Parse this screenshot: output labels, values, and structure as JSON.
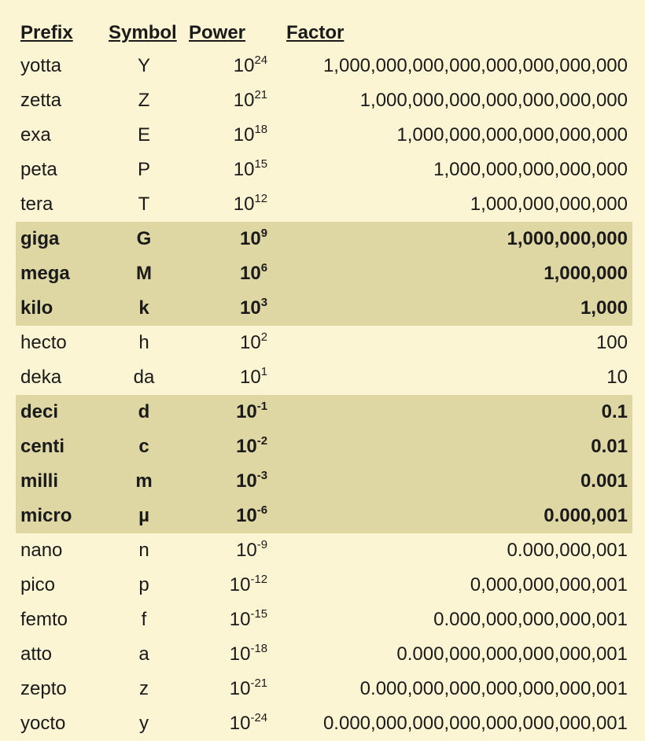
{
  "table": {
    "columns": [
      "Prefix",
      "Symbol",
      "Power",
      "Factor"
    ],
    "column_align": [
      "left",
      "center",
      "right",
      "right"
    ],
    "power_base": "10",
    "background_color": "#fcf5d4",
    "highlight_color": "#ded6a3",
    "text_color": "#1a1a1a",
    "font_size_pt": 18,
    "rows": [
      {
        "prefix": "yotta",
        "symbol": "Y",
        "exponent": "24",
        "factor": "1,000,000,000,000,000,000,000,000",
        "highlight": false
      },
      {
        "prefix": "zetta",
        "symbol": "Z",
        "exponent": "21",
        "factor": "1,000,000,000,000,000,000,000",
        "highlight": false
      },
      {
        "prefix": "exa",
        "symbol": "E",
        "exponent": "18",
        "factor": "1,000,000,000,000,000,000",
        "highlight": false
      },
      {
        "prefix": "peta",
        "symbol": "P",
        "exponent": "15",
        "factor": "1,000,000,000,000,000",
        "highlight": false
      },
      {
        "prefix": "tera",
        "symbol": "T",
        "exponent": "12",
        "factor": "1,000,000,000,000",
        "highlight": false
      },
      {
        "prefix": "giga",
        "symbol": "G",
        "exponent": "9",
        "factor": "1,000,000,000",
        "highlight": true
      },
      {
        "prefix": "mega",
        "symbol": "M",
        "exponent": "6",
        "factor": "1,000,000",
        "highlight": true
      },
      {
        "prefix": "kilo",
        "symbol": "k",
        "exponent": "3",
        "factor": "1,000",
        "highlight": true
      },
      {
        "prefix": "hecto",
        "symbol": "h",
        "exponent": "2",
        "factor": "100",
        "highlight": false
      },
      {
        "prefix": "deka",
        "symbol": "da",
        "exponent": "1",
        "factor": "10",
        "highlight": false
      },
      {
        "prefix": "deci",
        "symbol": "d",
        "exponent": "-1",
        "factor": "0.1",
        "highlight": true
      },
      {
        "prefix": "centi",
        "symbol": "c",
        "exponent": "-2",
        "factor": "0.01",
        "highlight": true
      },
      {
        "prefix": "milli",
        "symbol": "m",
        "exponent": "-3",
        "factor": "0.001",
        "highlight": true
      },
      {
        "prefix": "micro",
        "symbol": "µ",
        "exponent": "-6",
        "factor": "0.000,001",
        "highlight": true
      },
      {
        "prefix": "nano",
        "symbol": "n",
        "exponent": "-9",
        "factor": "0.000,000,001",
        "highlight": false
      },
      {
        "prefix": "pico",
        "symbol": "p",
        "exponent": "-12",
        "factor": "0,000,000,000,001",
        "highlight": false
      },
      {
        "prefix": "femto",
        "symbol": "f",
        "exponent": "-15",
        "factor": "0.000,000,000,000,001",
        "highlight": false
      },
      {
        "prefix": "atto",
        "symbol": "a",
        "exponent": "-18",
        "factor": "0.000,000,000,000,000,001",
        "highlight": false
      },
      {
        "prefix": "zepto",
        "symbol": "z",
        "exponent": "-21",
        "factor": "0.000,000,000,000,000,000,001",
        "highlight": false
      },
      {
        "prefix": "yocto",
        "symbol": "y",
        "exponent": "-24",
        "factor": "0.000,000,000,000,000,000,000,001",
        "highlight": false
      }
    ]
  }
}
